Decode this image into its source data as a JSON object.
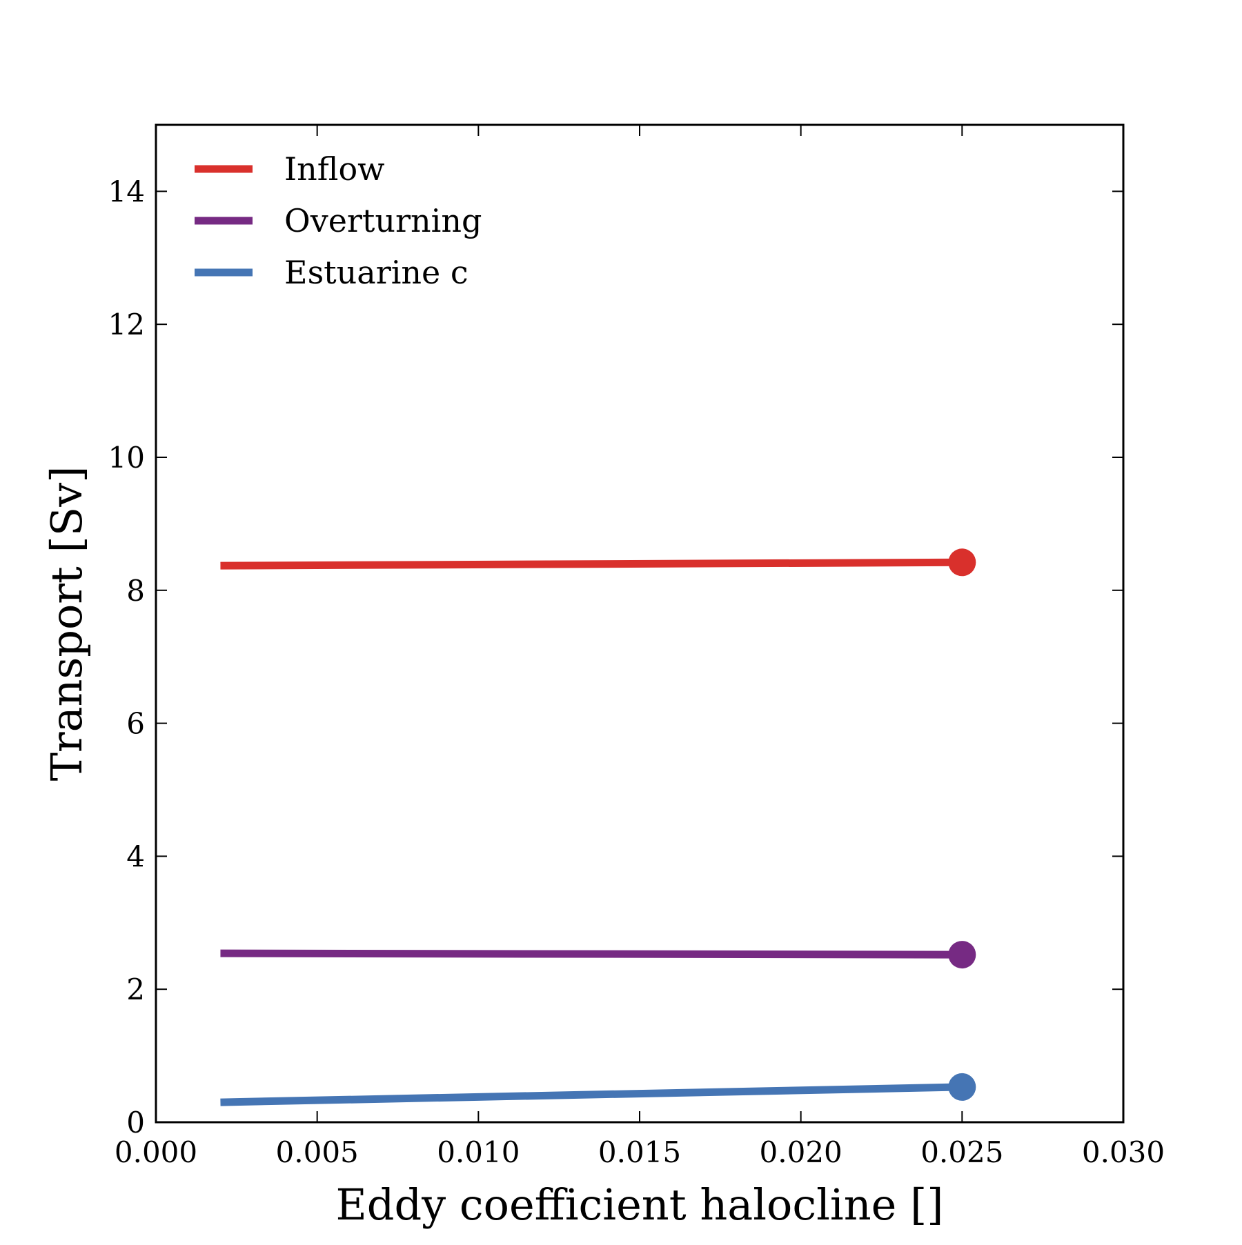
{
  "chart_data": {
    "type": "line",
    "title": "",
    "xlabel": "Eddy coefficient halocline []",
    "ylabel": "Transport [Sv]",
    "xlim": [
      0.0,
      0.03
    ],
    "ylim": [
      0,
      15
    ],
    "xticks": [
      0.0,
      0.005,
      0.01,
      0.015,
      0.02,
      0.025,
      0.03
    ],
    "xtick_labels": [
      "0.000",
      "0.005",
      "0.010",
      "0.015",
      "0.020",
      "0.025",
      "0.030"
    ],
    "yticks": [
      0,
      2,
      4,
      6,
      8,
      10,
      12,
      14
    ],
    "ytick_labels": [
      "0",
      "2",
      "4",
      "6",
      "8",
      "10",
      "12",
      "14"
    ],
    "grid": false,
    "legend_position": "top-left",
    "series": [
      {
        "name": "Inflow",
        "color": "#d9302c",
        "x": [
          0.002,
          0.025
        ],
        "y": [
          8.37,
          8.42
        ],
        "marker_at_last": true
      },
      {
        "name": "Overturning",
        "color": "#762a83",
        "x": [
          0.002,
          0.025
        ],
        "y": [
          2.54,
          2.52
        ],
        "marker_at_last": true
      },
      {
        "name": "Estuarine c",
        "color": "#4575b4",
        "x": [
          0.002,
          0.025
        ],
        "y": [
          0.3,
          0.53
        ],
        "marker_at_last": true
      }
    ]
  }
}
